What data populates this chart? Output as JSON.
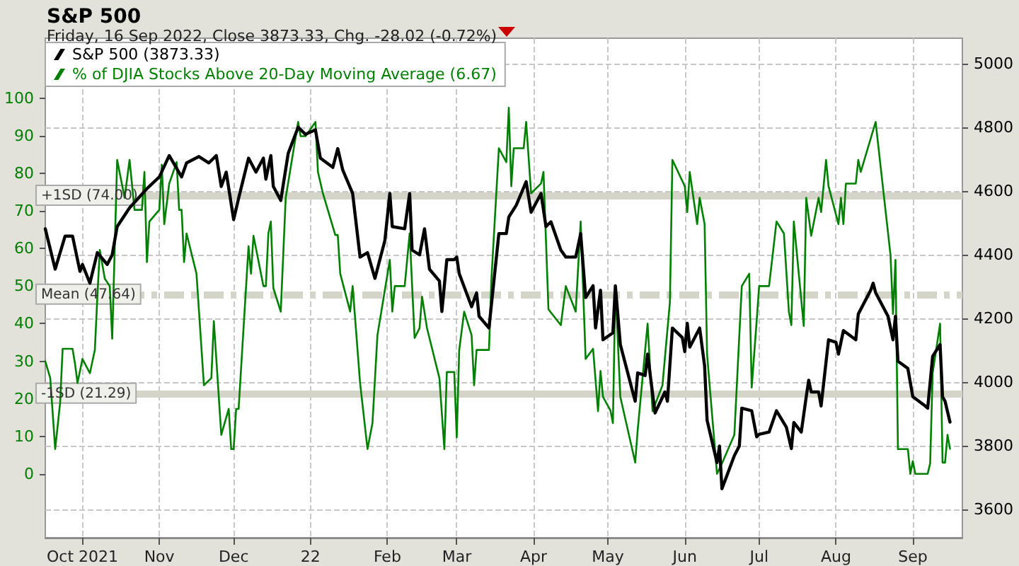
{
  "chart_data": {
    "type": "line",
    "title": "S&P 500",
    "subtitle": "Friday, 16 Sep 2022, Close 3873.33, Chg. -28.02 (-0.72%)",
    "xlim": [
      "2021-09-16",
      "2022-09-21"
    ],
    "xticks": [
      {
        "value": "2021-10-01",
        "label": "Oct 2021"
      },
      {
        "value": "2021-11-01",
        "label": "Nov"
      },
      {
        "value": "2021-12-01",
        "label": "Dec"
      },
      {
        "value": "2022-01-01",
        "label": "22"
      },
      {
        "value": "2022-02-01",
        "label": "Feb"
      },
      {
        "value": "2022-03-01",
        "label": "Mar"
      },
      {
        "value": "2022-04-01",
        "label": "Apr"
      },
      {
        "value": "2022-05-01",
        "label": "May"
      },
      {
        "value": "2022-06-01",
        "label": "Jun"
      },
      {
        "value": "2022-07-01",
        "label": "Jul"
      },
      {
        "value": "2022-08-01",
        "label": "Aug"
      },
      {
        "value": "2022-09-01",
        "label": "Sep"
      }
    ],
    "ylim": [
      -17,
      116
    ],
    "yticks": [
      0,
      10,
      20,
      30,
      40,
      50,
      60,
      70,
      80,
      90,
      100
    ],
    "y2lim": [
      3510,
      5080
    ],
    "y2ticks": [
      3600,
      3800,
      4000,
      4200,
      4400,
      4600,
      4800,
      5000
    ],
    "grid": true,
    "legend": "top left",
    "marker": "none",
    "line_style": "solid",
    "ref_lines": [
      {
        "axis": "y",
        "value": 74,
        "label": "+1SD (74.00)",
        "color": "#d4d4c8",
        "line_style": "solid"
      },
      {
        "axis": "y",
        "value": 47.64,
        "label": "Mean (47.64)",
        "color": "#d4d4c8",
        "line_style": "dashed"
      },
      {
        "axis": "y",
        "value": 21.29,
        "label": "-1SD (21.29)",
        "color": "#d4d4c8",
        "line_style": "solid"
      }
    ],
    "series": [
      {
        "name": "S&P 500 (3873.33)",
        "color": "#000000",
        "axis": "y2",
        "x": [
          "2021-09-16",
          "2021-09-20",
          "2021-09-24",
          "2021-09-27",
          "2021-09-30",
          "2021-10-01",
          "2021-10-04",
          "2021-10-07",
          "2021-10-11",
          "2021-10-13",
          "2021-10-15",
          "2021-10-20",
          "2021-10-27",
          "2021-11-01",
          "2021-11-05",
          "2021-11-10",
          "2021-11-12",
          "2021-11-17",
          "2021-11-21",
          "2021-11-24",
          "2021-11-26",
          "2021-11-28",
          "2021-12-01",
          "2021-12-03",
          "2021-12-07",
          "2021-12-10",
          "2021-12-13",
          "2021-12-14",
          "2021-12-16",
          "2021-12-17",
          "2021-12-20",
          "2021-12-23",
          "2021-12-27",
          "2021-12-30",
          "2022-01-03",
          "2022-01-05",
          "2022-01-10",
          "2022-01-12",
          "2022-01-14",
          "2022-01-18",
          "2022-01-21",
          "2022-01-24",
          "2022-01-27",
          "2022-01-31",
          "2022-02-02",
          "2022-02-03",
          "2022-02-08",
          "2022-02-10",
          "2022-02-11",
          "2022-02-14",
          "2022-02-16",
          "2022-02-18",
          "2022-02-22",
          "2022-02-23",
          "2022-02-25",
          "2022-02-28",
          "2022-03-01",
          "2022-03-02",
          "2022-03-07",
          "2022-03-09",
          "2022-03-10",
          "2022-03-14",
          "2022-03-18",
          "2022-03-21",
          "2022-03-22",
          "2022-03-25",
          "2022-03-29",
          "2022-03-31",
          "2022-04-04",
          "2022-04-06",
          "2022-04-08",
          "2022-04-12",
          "2022-04-14",
          "2022-04-18",
          "2022-04-20",
          "2022-04-22",
          "2022-04-25",
          "2022-04-26",
          "2022-04-28",
          "2022-04-29",
          "2022-05-03",
          "2022-05-04",
          "2022-05-06",
          "2022-05-11",
          "2022-05-12",
          "2022-05-13",
          "2022-05-16",
          "2022-05-17",
          "2022-05-20",
          "2022-05-24",
          "2022-05-25",
          "2022-05-27",
          "2022-05-31",
          "2022-06-01",
          "2022-06-02",
          "2022-06-03",
          "2022-06-07",
          "2022-06-09",
          "2022-06-10",
          "2022-06-14",
          "2022-06-15",
          "2022-06-16",
          "2022-06-21",
          "2022-06-23",
          "2022-06-24",
          "2022-06-28",
          "2022-06-30",
          "2022-07-01",
          "2022-07-05",
          "2022-07-08",
          "2022-07-12",
          "2022-07-14",
          "2022-07-15",
          "2022-07-18",
          "2022-07-20",
          "2022-07-21",
          "2022-07-22",
          "2022-07-25",
          "2022-07-26",
          "2022-07-29",
          "2022-08-01",
          "2022-08-02",
          "2022-08-04",
          "2022-08-09",
          "2022-08-10",
          "2022-08-15",
          "2022-08-16",
          "2022-08-17",
          "2022-08-22",
          "2022-08-24",
          "2022-08-25",
          "2022-08-26",
          "2022-08-30",
          "2022-09-01",
          "2022-09-06",
          "2022-09-07",
          "2022-09-09",
          "2022-09-12",
          "2022-09-13",
          "2022-09-14",
          "2022-09-16"
        ],
        "values": [
          4481,
          4354,
          4458,
          4458,
          4347,
          4369,
          4310,
          4406,
          4369,
          4399,
          4488,
          4547,
          4607,
          4644,
          4711,
          4644,
          4688,
          4708,
          4688,
          4711,
          4614,
          4659,
          4510,
          4577,
          4703,
          4659,
          4703,
          4637,
          4711,
          4614,
          4570,
          4718,
          4800,
          4778,
          4792,
          4703,
          4674,
          4733,
          4666,
          4592,
          4392,
          4406,
          4325,
          4444,
          4592,
          4488,
          4481,
          4592,
          4414,
          4399,
          4481,
          4354,
          4317,
          4221,
          4384,
          4384,
          4392,
          4340,
          4236,
          4280,
          4206,
          4169,
          4466,
          4466,
          4518,
          4555,
          4629,
          4533,
          4592,
          4488,
          4503,
          4414,
          4392,
          4392,
          4466,
          4265,
          4302,
          4169,
          4288,
          4132,
          4154,
          4302,
          4117,
          3968,
          3939,
          4028,
          4020,
          4087,
          3902,
          3968,
          3939,
          4169,
          4139,
          4095,
          4184,
          4109,
          4169,
          4050,
          3879,
          3746,
          3798,
          3664,
          3768,
          3798,
          3917,
          3909,
          3827,
          3835,
          3842,
          3909,
          3857,
          3790,
          3872,
          3842,
          3953,
          4005,
          3968,
          3968,
          3924,
          4132,
          4124,
          4087,
          4161,
          4132,
          4213,
          4288,
          4310,
          4280,
          4206,
          4132,
          4206,
          4065,
          4042,
          3953,
          3924,
          3917,
          4080,
          4117,
          3953,
          3939,
          3873.33
        ]
      },
      {
        "name": "% of DJIA Stocks Above 20-Day Moving Average (6.67)",
        "color": "#008000",
        "axis": "y",
        "x": [
          "2021-09-16",
          "2021-09-18",
          "2021-09-20",
          "2021-09-22",
          "2021-09-23",
          "2021-09-27",
          "2021-09-28",
          "2021-09-29",
          "2021-10-01",
          "2021-10-04",
          "2021-10-06",
          "2021-10-07",
          "2021-10-08",
          "2021-10-10",
          "2021-10-12",
          "2021-10-13",
          "2021-10-15",
          "2021-10-18",
          "2021-10-20",
          "2021-10-22",
          "2021-10-25",
          "2021-10-26",
          "2021-10-27",
          "2021-10-28",
          "2021-11-01",
          "2021-11-02",
          "2021-11-03",
          "2021-11-05",
          "2021-11-08",
          "2021-11-09",
          "2021-11-10",
          "2021-11-11",
          "2021-11-12",
          "2021-11-16",
          "2021-11-19",
          "2021-11-22",
          "2021-11-23",
          "2021-11-26",
          "2021-11-29",
          "2021-11-30",
          "2021-12-01",
          "2021-12-02",
          "2021-12-03",
          "2021-12-07",
          "2021-12-08",
          "2021-12-09",
          "2021-12-13",
          "2021-12-14",
          "2021-12-15",
          "2021-12-16",
          "2021-12-17",
          "2021-12-20",
          "2021-12-22",
          "2021-12-27",
          "2021-12-28",
          "2021-12-30",
          "2022-01-03",
          "2022-01-04",
          "2022-01-06",
          "2022-01-11",
          "2022-01-12",
          "2022-01-13",
          "2022-01-17",
          "2022-01-18",
          "2022-01-21",
          "2022-01-24",
          "2022-01-26",
          "2022-01-28",
          "2022-02-02",
          "2022-02-03",
          "2022-02-04",
          "2022-02-08",
          "2022-02-10",
          "2022-02-12",
          "2022-02-14",
          "2022-02-15",
          "2022-02-17",
          "2022-02-22",
          "2022-02-24",
          "2022-02-25",
          "2022-02-28",
          "2022-03-01",
          "2022-03-02",
          "2022-03-04",
          "2022-03-07",
          "2022-03-08",
          "2022-03-09",
          "2022-03-14",
          "2022-03-15",
          "2022-03-18",
          "2022-03-21",
          "2022-03-22",
          "2022-03-23",
          "2022-03-24",
          "2022-03-28",
          "2022-03-29",
          "2022-03-31",
          "2022-04-04",
          "2022-04-05",
          "2022-04-07",
          "2022-04-12",
          "2022-04-14",
          "2022-04-18",
          "2022-04-20",
          "2022-04-22",
          "2022-04-25",
          "2022-04-27",
          "2022-04-28",
          "2022-04-29",
          "2022-05-02",
          "2022-05-03",
          "2022-05-04",
          "2022-05-06",
          "2022-05-12",
          "2022-05-13",
          "2022-05-17",
          "2022-05-19",
          "2022-05-23",
          "2022-05-26",
          "2022-05-27",
          "2022-06-01",
          "2022-06-02",
          "2022-06-03",
          "2022-06-06",
          "2022-06-07",
          "2022-06-09",
          "2022-06-10",
          "2022-06-14",
          "2022-06-16",
          "2022-06-21",
          "2022-06-24",
          "2022-06-27",
          "2022-06-28",
          "2022-06-30",
          "2022-07-01",
          "2022-07-05",
          "2022-07-08",
          "2022-07-11",
          "2022-07-13",
          "2022-07-14",
          "2022-07-15",
          "2022-07-19",
          "2022-07-20",
          "2022-07-22",
          "2022-07-25",
          "2022-07-26",
          "2022-07-28",
          "2022-07-29",
          "2022-08-02",
          "2022-08-03",
          "2022-08-04",
          "2022-08-05",
          "2022-08-09",
          "2022-08-10",
          "2022-08-11",
          "2022-08-17",
          "2022-08-23",
          "2022-08-24",
          "2022-08-25",
          "2022-08-26",
          "2022-08-30",
          "2022-08-31",
          "2022-09-01",
          "2022-09-02",
          "2022-09-07",
          "2022-09-08",
          "2022-09-09",
          "2022-09-12",
          "2022-09-13",
          "2022-09-14",
          "2022-09-15",
          "2022-09-16"
        ],
        "values": [
          30,
          25.5,
          6.6,
          19,
          33.3,
          33.3,
          29.3,
          24.2,
          30.6,
          26.8,
          33,
          47,
          59.6,
          52,
          50,
          36,
          83.6,
          73.5,
          83.6,
          70.3,
          70.3,
          80.4,
          56.4,
          67.2,
          70.3,
          82.3,
          66.5,
          77.3,
          83,
          70.3,
          70.3,
          56.4,
          64,
          53.3,
          23.6,
          25.5,
          40.7,
          10.4,
          17.3,
          6.6,
          6.6,
          17.3,
          17.3,
          60.6,
          53.3,
          63.4,
          50,
          50,
          64,
          67.2,
          49.5,
          43.2,
          73.5,
          93.7,
          89.9,
          89.9,
          93.7,
          80.4,
          74.7,
          63.6,
          63.6,
          53.3,
          43.2,
          50,
          24.2,
          6.6,
          13.5,
          36.9,
          57,
          43.2,
          50,
          50,
          64,
          36.2,
          38.8,
          47.2,
          38.8,
          25.5,
          6.6,
          27.1,
          27.1,
          9.7,
          33,
          43.2,
          36.9,
          23.6,
          33,
          33,
          52,
          86.7,
          83,
          97.5,
          76.6,
          86.7,
          86.7,
          93.7,
          74.7,
          77.3,
          80.4,
          43.8,
          39.6,
          50,
          43.2,
          67.2,
          30.6,
          33.3,
          16.7,
          27.4,
          20.5,
          16.9,
          13.5,
          50,
          20.5,
          3,
          11.6,
          40,
          16.7,
          23.6,
          45.7,
          83.6,
          76.6,
          69.7,
          80.4,
          66.5,
          73.5,
          66.5,
          31.8,
          0,
          2.8,
          10.4,
          50,
          53.3,
          23,
          40.7,
          50,
          50,
          67.2,
          64,
          43.2,
          39.6,
          67.2,
          39.4,
          73.5,
          63.4,
          73.5,
          69.7,
          83.6,
          76.6,
          66.5,
          73.5,
          66.5,
          77.3,
          77.3,
          83.6,
          80.4,
          93.7,
          58.3,
          42.6,
          57,
          6.6,
          6.6,
          0,
          3.4,
          0,
          0,
          2.8,
          26.8,
          40,
          3,
          3,
          10.4,
          6.67
        ]
      }
    ]
  }
}
